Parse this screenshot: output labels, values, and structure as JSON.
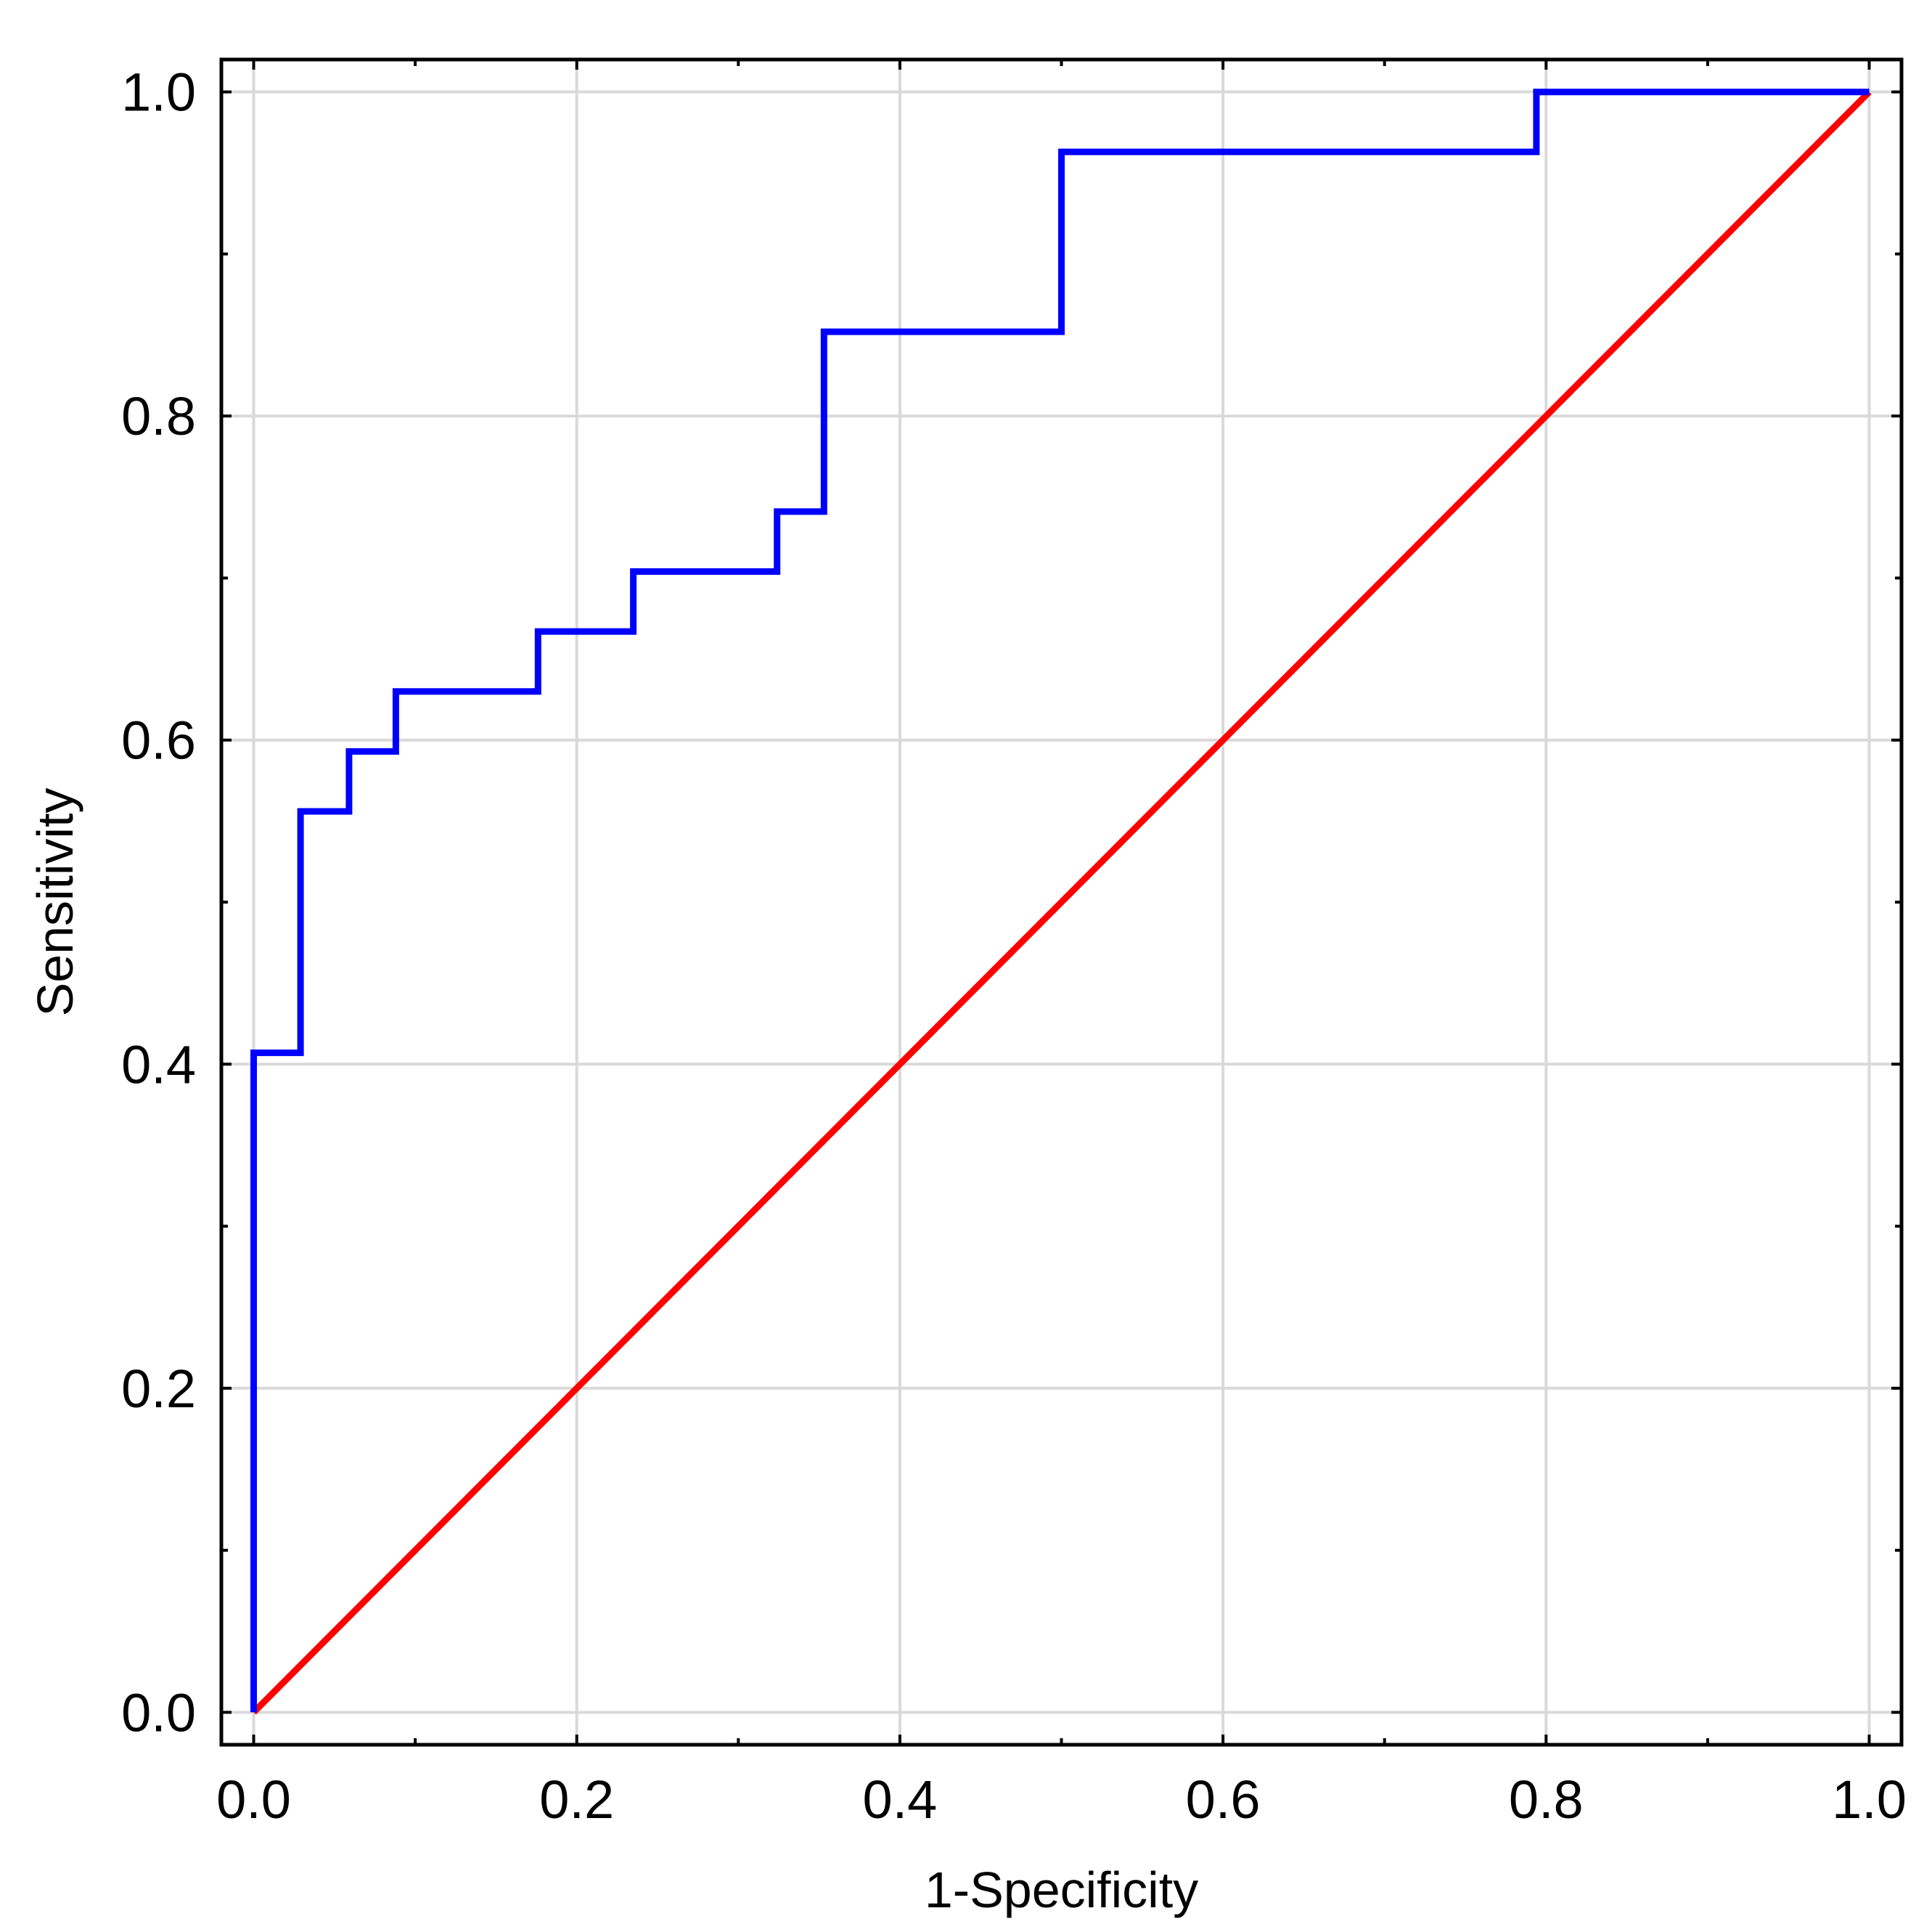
{
  "chart_data": {
    "type": "line",
    "title": "",
    "xlabel": "1-Specificity",
    "ylabel": "Sensitivity",
    "xlim": [
      -0.02,
      1.02
    ],
    "ylim": [
      -0.02,
      1.02
    ],
    "grid": true,
    "x_ticks": [
      "0.0",
      "0.2",
      "0.4",
      "0.6",
      "0.8",
      "1.0"
    ],
    "y_ticks": [
      "0.0",
      "0.2",
      "0.4",
      "0.6",
      "0.8",
      "1.0"
    ],
    "series": [
      {
        "color": "#0000ff",
        "style": "step",
        "points": [
          [
            0.0,
            0.0
          ],
          [
            0.0,
            0.407
          ],
          [
            0.029,
            0.407
          ],
          [
            0.029,
            0.556
          ],
          [
            0.059,
            0.556
          ],
          [
            0.059,
            0.593
          ],
          [
            0.088,
            0.593
          ],
          [
            0.088,
            0.63
          ],
          [
            0.176,
            0.63
          ],
          [
            0.176,
            0.667
          ],
          [
            0.235,
            0.667
          ],
          [
            0.235,
            0.704
          ],
          [
            0.324,
            0.704
          ],
          [
            0.324,
            0.741
          ],
          [
            0.353,
            0.741
          ],
          [
            0.353,
            0.852
          ],
          [
            0.5,
            0.852
          ],
          [
            0.5,
            0.963
          ],
          [
            0.794,
            0.963
          ],
          [
            0.794,
            1.0
          ],
          [
            1.0,
            1.0
          ]
        ]
      },
      {
        "color": "#ff0000",
        "style": "line",
        "points": [
          [
            0.0,
            0.0
          ],
          [
            1.0,
            1.0
          ]
        ]
      }
    ]
  }
}
